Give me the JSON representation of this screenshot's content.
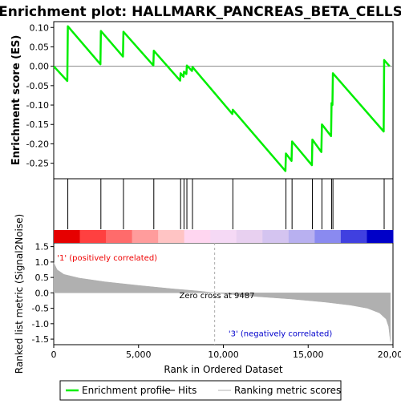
{
  "chart_data": {
    "type": "line",
    "title": "Enrichment plot: HALLMARK_PANCREAS_BETA_CELLS",
    "xlabel": "Rank in Ordered Dataset",
    "xlim": [
      0,
      20000
    ],
    "x_ticks": [
      0,
      5000,
      10000,
      15000,
      20000
    ],
    "x_tick_labels": [
      "0",
      "5,000",
      "10,000",
      "15,000",
      "20,000"
    ],
    "panels": [
      {
        "name": "enrichment",
        "ylabel": "Enrichment score (ES)",
        "ylim": [
          -0.29,
          0.115
        ],
        "y_ticks": [
          0.1,
          0.05,
          0.0,
          -0.05,
          -0.1,
          -0.15,
          -0.2,
          -0.25
        ],
        "y_tick_labels": [
          "0.10",
          "0.05",
          "0.00",
          "-0.05",
          "-0.10",
          "-0.15",
          "-0.20",
          "-0.25"
        ],
        "series": [
          {
            "name": "Enrichment profile",
            "color": "#00ee00",
            "points": [
              [
                0,
                0.0
              ],
              [
                800,
                -0.038
              ],
              [
                830,
                0.103
              ],
              [
                2750,
                0.005
              ],
              [
                2780,
                0.091
              ],
              [
                4080,
                0.025
              ],
              [
                4110,
                0.089
              ],
              [
                5870,
                0.002
              ],
              [
                5900,
                0.04
              ],
              [
                7450,
                -0.037
              ],
              [
                7480,
                -0.018
              ],
              [
                7650,
                -0.027
              ],
              [
                7680,
                -0.014
              ],
              [
                7820,
                -0.02
              ],
              [
                7850,
                0.002
              ],
              [
                8150,
                -0.012
              ],
              [
                8180,
                -0.002
              ],
              [
                10530,
                -0.123
              ],
              [
                10560,
                -0.112
              ],
              [
                13660,
                -0.27
              ],
              [
                13690,
                -0.225
              ],
              [
                14020,
                -0.244
              ],
              [
                14050,
                -0.194
              ],
              [
                15220,
                -0.255
              ],
              [
                15250,
                -0.189
              ],
              [
                15780,
                -0.221
              ],
              [
                15810,
                -0.15
              ],
              [
                16350,
                -0.18
              ],
              [
                16380,
                -0.095
              ],
              [
                16430,
                -0.1
              ],
              [
                16460,
                -0.018
              ],
              [
                19450,
                -0.168
              ],
              [
                19480,
                0.016
              ],
              [
                19800,
                0.0
              ]
            ]
          }
        ]
      },
      {
        "name": "hits",
        "hit_positions": [
          830,
          2780,
          4110,
          5900,
          7480,
          7680,
          7850,
          8180,
          10560,
          13690,
          14050,
          15250,
          15810,
          16380,
          16460,
          19480
        ]
      },
      {
        "name": "ranked_list_metric",
        "ylabel": "Ranked list metric (Signal2Noise)",
        "ylim": [
          -1.68,
          1.62
        ],
        "y_ticks": [
          1.5,
          1.0,
          0.5,
          0.0,
          -0.5,
          -1.0,
          -1.5
        ],
        "y_tick_labels": [
          "1.5",
          "1.0",
          "0.5",
          "0.0",
          "-0.5",
          "-1.0",
          "-1.5"
        ],
        "series": [
          {
            "name": "Ranking metric scores",
            "color": "#b0b0b0",
            "points": [
              [
                0,
                0.98
              ],
              [
                200,
                0.75
              ],
              [
                600,
                0.6
              ],
              [
                1500,
                0.48
              ],
              [
                3000,
                0.36
              ],
              [
                5000,
                0.24
              ],
              [
                7000,
                0.13
              ],
              [
                8500,
                0.06
              ],
              [
                9487,
                0.0
              ],
              [
                10500,
                -0.05
              ],
              [
                12000,
                -0.12
              ],
              [
                14000,
                -0.2
              ],
              [
                16000,
                -0.3
              ],
              [
                17500,
                -0.4
              ],
              [
                18500,
                -0.5
              ],
              [
                19200,
                -0.65
              ],
              [
                19600,
                -0.85
              ],
              [
                19750,
                -1.1
              ],
              [
                19850,
                -1.58
              ]
            ]
          }
        ],
        "annotations": [
          {
            "text": "'1' (positively correlated)",
            "color": "#ee0000",
            "x": 200,
            "y": 1.15
          },
          {
            "text": "Zero cross at 9487",
            "color": "#000000",
            "x": 7400,
            "y": -0.07
          },
          {
            "text": "'3' (negatively correlated)",
            "color": "#0000cc",
            "x": 10300,
            "y": -1.3
          }
        ],
        "zero_cross": 9487
      }
    ],
    "heat_bar_colors": [
      "#e60000",
      "#ff4040",
      "#ff6b6b",
      "#ff9c9c",
      "#ffc4c4",
      "#ffd6f0",
      "#f5d9f5",
      "#e8d0f0",
      "#d4c4f0",
      "#b8b0f0",
      "#8a8af0",
      "#4040e0",
      "#0000c8"
    ],
    "legend": {
      "placement": "bottom",
      "entries": [
        {
          "label": "Enrichment profile",
          "color": "#00ee00",
          "kind": "line"
        },
        {
          "label": "Hits",
          "color": "#000000",
          "kind": "line"
        },
        {
          "label": "Ranking metric scores",
          "color": "#b0b0b0",
          "kind": "line"
        }
      ]
    },
    "grid": false
  }
}
